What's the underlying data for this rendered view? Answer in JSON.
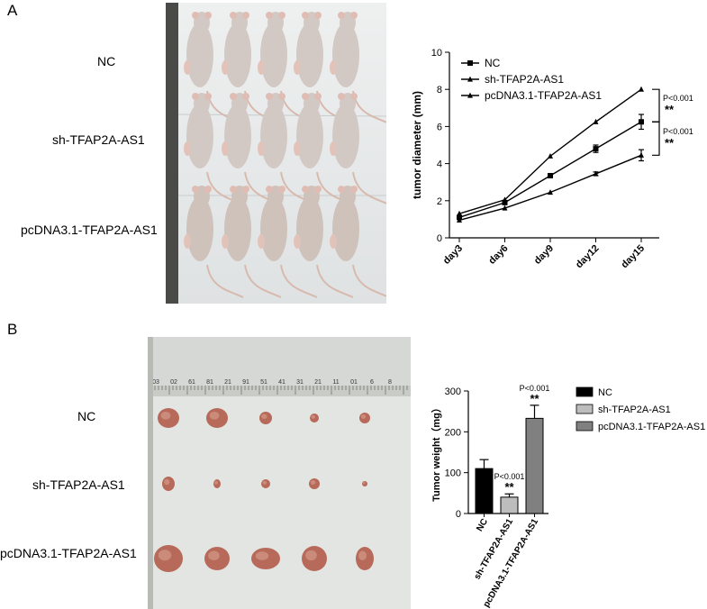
{
  "panels": {
    "a": {
      "letter": "A",
      "row_labels": [
        "NC",
        "sh-TFAP2A-AS1",
        "pcDNA3.1-TFAP2A-AS1"
      ]
    },
    "b": {
      "letter": "B",
      "row_labels": [
        "NC",
        "sh-TFAP2A-AS1",
        "pcDNA3.1-TFAP2A-AS1"
      ],
      "ruler_numbers": [
        "03",
        "02",
        "61",
        "81",
        "21",
        "91",
        "51",
        "41",
        "31",
        "21",
        "11",
        "01",
        "6",
        "8"
      ]
    }
  },
  "chart_data": [
    {
      "type": "line",
      "title": "",
      "xlabel": "",
      "ylabel": "tumor diameter (mm)",
      "categories": [
        "day3",
        "day6",
        "day9",
        "day12",
        "day15"
      ],
      "ylim": [
        0,
        10
      ],
      "yticks": [
        0,
        2,
        4,
        6,
        8,
        10
      ],
      "legend_position": "top-left",
      "series": [
        {
          "name": "NC",
          "marker": "square",
          "values": [
            1.1,
            1.9,
            3.35,
            4.8,
            6.25
          ],
          "errors": [
            0.1,
            0.1,
            0.1,
            0.2,
            0.4
          ]
        },
        {
          "name": "sh-TFAP2A-AS1",
          "marker": "triangle",
          "values": [
            0.95,
            1.6,
            2.45,
            3.45,
            4.45
          ],
          "errors": [
            0.05,
            0.05,
            0.05,
            0.1,
            0.3
          ]
        },
        {
          "name": "pcDNA3.1-TFAP2A-AS1",
          "marker": "triangle",
          "values": [
            1.3,
            2.05,
            4.4,
            6.25,
            8.0
          ],
          "errors": [
            0.05,
            0.05,
            0.05,
            0.05,
            0.05
          ]
        }
      ],
      "annotations": [
        {
          "p_text": "P<0.001",
          "stars": "**"
        },
        {
          "p_text": "P<0.001",
          "stars": "**"
        }
      ]
    },
    {
      "type": "bar",
      "title": "",
      "xlabel": "",
      "ylabel": "Tumor weight（mg）",
      "categories": [
        "NC",
        "sh-TFAP2A-AS1",
        "pcDNA3.1-TFAP2A-AS1"
      ],
      "values": [
        110,
        40,
        233
      ],
      "errors": [
        22,
        8,
        32
      ],
      "colors": [
        "#000000",
        "#bdbdbd",
        "#808080"
      ],
      "ylim": [
        0,
        300
      ],
      "yticks": [
        0,
        100,
        200,
        300
      ],
      "legend_position": "right",
      "legend": [
        "NC",
        "sh-TFAP2A-AS1",
        "pcDNA3.1-TFAP2A-AS1"
      ],
      "annotations": [
        {
          "category": "sh-TFAP2A-AS1",
          "p_text": "P<0.001",
          "stars": "**"
        },
        {
          "category": "pcDNA3.1-TFAP2A-AS1",
          "p_text": "P<0.001",
          "stars": "**"
        }
      ]
    }
  ]
}
